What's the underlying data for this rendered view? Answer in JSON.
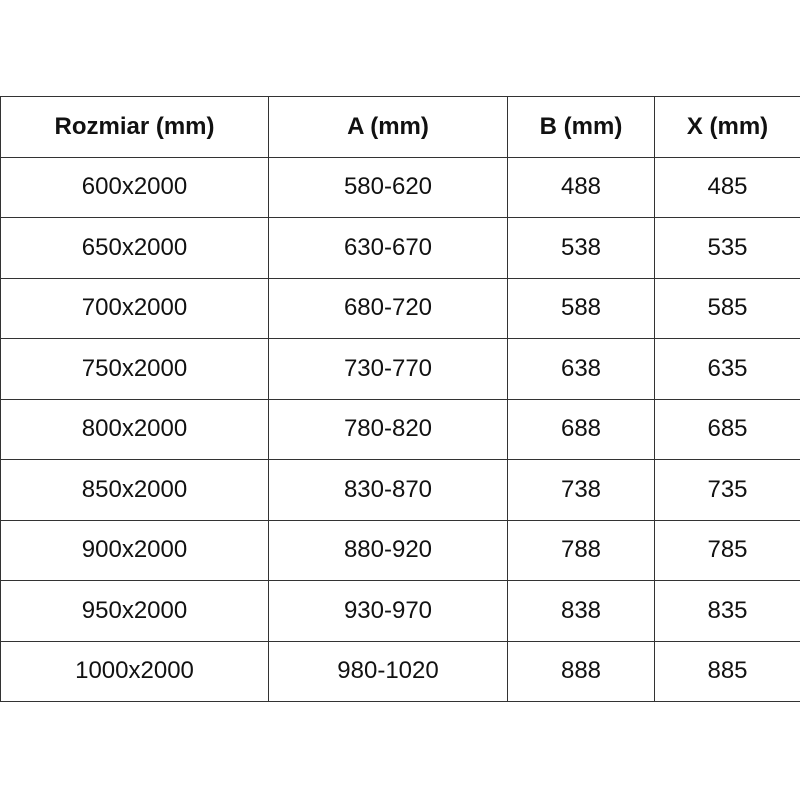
{
  "table": {
    "headers": [
      "Rozmiar (mm)",
      "A (mm)",
      "B (mm)",
      "X (mm)"
    ],
    "rows": [
      [
        "600x2000",
        "580-620",
        "488",
        "485"
      ],
      [
        "650x2000",
        "630-670",
        "538",
        "535"
      ],
      [
        "700x2000",
        "680-720",
        "588",
        "585"
      ],
      [
        "750x2000",
        "730-770",
        "638",
        "635"
      ],
      [
        "800x2000",
        "780-820",
        "688",
        "685"
      ],
      [
        "850x2000",
        "830-870",
        "738",
        "735"
      ],
      [
        "900x2000",
        "880-920",
        "788",
        "785"
      ],
      [
        "950x2000",
        "930-970",
        "838",
        "835"
      ],
      [
        "1000x2000",
        "980-1020",
        "888",
        "885"
      ]
    ]
  }
}
